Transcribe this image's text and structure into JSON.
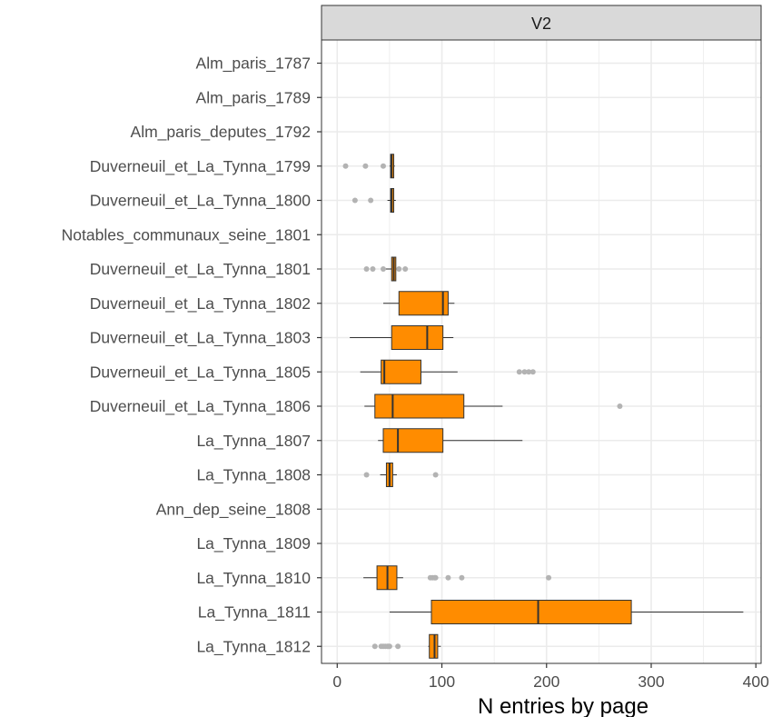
{
  "chart_data": {
    "type": "boxplot",
    "orientation": "horizontal",
    "facet_label": "V2",
    "xlabel": "N entries by page",
    "xlim": [
      -15,
      405
    ],
    "xticks": [
      0,
      100,
      200,
      300,
      400
    ],
    "grid": true,
    "legend": "none",
    "colors": {
      "box_fill": "#FF8C00",
      "box_stroke": "#333333",
      "outlier": "#b3b3b3",
      "strip_fill": "#d9d9d9",
      "grid": "#ebebeb"
    },
    "categories": [
      "Alm_paris_1787",
      "Alm_paris_1789",
      "Alm_paris_deputes_1792",
      "Duverneuil_et_La_Tynna_1799",
      "Duverneuil_et_La_Tynna_1800",
      "Notables_communaux_seine_1801",
      "Duverneuil_et_La_Tynna_1801",
      "Duverneuil_et_La_Tynna_1802",
      "Duverneuil_et_La_Tynna_1803",
      "Duverneuil_et_La_Tynna_1805",
      "Duverneuil_et_La_Tynna_1806",
      "La_Tynna_1807",
      "La_Tynna_1808",
      "Ann_dep_seine_1808",
      "La_Tynna_1809",
      "La_Tynna_1810",
      "La_Tynna_1811",
      "La_Tynna_1812"
    ],
    "boxes": [
      null,
      null,
      null,
      {
        "whisker_low": 50,
        "q1": 51,
        "median": 52,
        "q3": 54,
        "whisker_high": 55,
        "outliers": [
          8,
          27,
          44
        ]
      },
      {
        "whisker_low": 48,
        "q1": 51,
        "median": 52,
        "q3": 54,
        "whisker_high": 56,
        "outliers": [
          17,
          32
        ]
      },
      null,
      {
        "whisker_low": 46,
        "q1": 52,
        "median": 54,
        "q3": 56,
        "whisker_high": 58,
        "outliers": [
          28,
          34,
          44,
          59,
          65
        ]
      },
      {
        "whisker_low": 44,
        "q1": 59,
        "median": 101,
        "q3": 106,
        "whisker_high": 112,
        "outliers": []
      },
      {
        "whisker_low": 12,
        "q1": 52,
        "median": 86,
        "q3": 101,
        "whisker_high": 111,
        "outliers": []
      },
      {
        "whisker_low": 22,
        "q1": 42,
        "median": 45,
        "q3": 80,
        "whisker_high": 115,
        "outliers": [
          174,
          179,
          183,
          187
        ]
      },
      {
        "whisker_low": 26,
        "q1": 36,
        "median": 53,
        "q3": 121,
        "whisker_high": 158,
        "outliers": [
          270
        ]
      },
      {
        "whisker_low": 39,
        "q1": 44,
        "median": 58,
        "q3": 101,
        "whisker_high": 177,
        "outliers": []
      },
      {
        "whisker_low": 41,
        "q1": 47,
        "median": 50,
        "q3": 53,
        "whisker_high": 57,
        "outliers": [
          28,
          94
        ]
      },
      null,
      null,
      {
        "whisker_low": 25,
        "q1": 38,
        "median": 48,
        "q3": 57,
        "whisker_high": 63,
        "outliers": [
          89,
          91,
          93,
          94,
          106,
          119,
          202
        ]
      },
      {
        "whisker_low": 50,
        "q1": 90,
        "median": 192,
        "q3": 281,
        "whisker_high": 388,
        "outliers": []
      },
      {
        "whisker_low": 87,
        "q1": 88,
        "median": 93,
        "q3": 96,
        "whisker_high": 99,
        "outliers": [
          36,
          42,
          44,
          46,
          48,
          49,
          50,
          58
        ]
      }
    ]
  }
}
